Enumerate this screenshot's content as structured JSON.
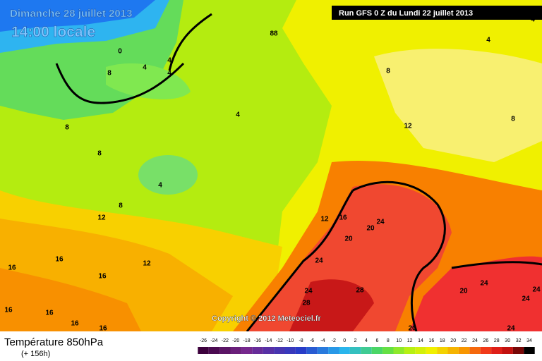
{
  "header": {
    "date": "Dimanche 28 juillet 2013",
    "time": "14:00 locale",
    "run": "Run GFS 0 Z du Lundi 22 juillet 2013"
  },
  "copyright": "Copyright © 2012 Meteociel.fr",
  "footer": {
    "title": "Température 850hPa",
    "lead": "(+ 156h)"
  },
  "legend": {
    "labels": [
      -26,
      -24,
      -22,
      -20,
      -18,
      -16,
      -14,
      -12,
      -10,
      -8,
      -6,
      -4,
      -2,
      0,
      2,
      4,
      6,
      8,
      10,
      12,
      14,
      16,
      18,
      20,
      22,
      24,
      26,
      28,
      30,
      32,
      34
    ]
  },
  "contour_labels": [
    "88",
    "0",
    "4",
    "4",
    "8",
    "4",
    "8",
    "4",
    "4",
    "4",
    "8",
    "8",
    "4",
    "8",
    "12",
    "12",
    "8",
    "12",
    "16",
    "20",
    "24",
    "20",
    "24",
    "16",
    "16",
    "12",
    "16",
    "24",
    "28",
    "28",
    "20",
    "24",
    "24",
    "24",
    "16",
    "16",
    "16",
    "16",
    "20",
    "24"
  ]
}
